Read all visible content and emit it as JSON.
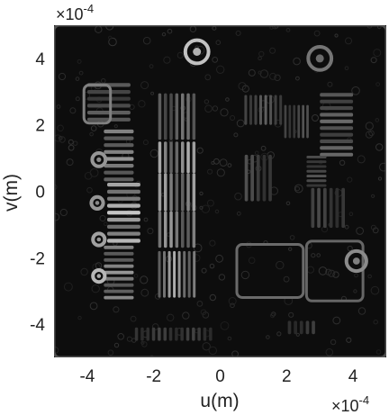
{
  "chart_data": {
    "type": "heatmap",
    "title": "",
    "xlabel": "u(m)",
    "ylabel": "v(m)",
    "xlim": [
      -5,
      5
    ],
    "ylim": [
      -5,
      5
    ],
    "x_ticks": [
      -4,
      -2,
      0,
      2,
      4
    ],
    "y_ticks": [
      4,
      2,
      0,
      -2,
      -4
    ],
    "x_tick_labels": [
      "-4",
      "-2",
      "0",
      "2",
      "4"
    ],
    "y_tick_labels": [
      "4",
      "2",
      "0",
      "-2",
      "-4"
    ],
    "x_scale_base": "×10",
    "x_scale_power": "-4",
    "y_scale_base": "×10",
    "y_scale_power": "-4",
    "colormap": "gray",
    "background_color": "#0d0d0d",
    "grid": false,
    "legend": "none",
    "bar_groups": [
      {
        "x0": -4.0,
        "x1": -2.7,
        "y0": 2.05,
        "y1": 3.3,
        "n": 6,
        "orient": "h",
        "level": 0.35
      },
      {
        "x0": -3.5,
        "x1": -2.6,
        "y0": 0.25,
        "y1": 1.9,
        "n": 8,
        "orient": "h",
        "level": 0.6
      },
      {
        "x0": -3.4,
        "x1": -2.4,
        "y0": -1.6,
        "y1": 0.3,
        "n": 9,
        "orient": "h",
        "level": 0.82
      },
      {
        "x0": -3.5,
        "x1": -2.6,
        "y0": -3.3,
        "y1": -1.6,
        "n": 9,
        "orient": "h",
        "level": 0.6
      },
      {
        "x0": -1.9,
        "x1": -0.7,
        "y0": 1.55,
        "y1": 2.95,
        "n": 7,
        "orient": "v",
        "level": 0.45
      },
      {
        "x0": -1.9,
        "x1": -0.7,
        "y0": 0.55,
        "y1": 1.5,
        "n": 7,
        "orient": "v",
        "level": 0.7
      },
      {
        "x0": -1.9,
        "x1": -0.7,
        "y0": -0.6,
        "y1": 0.55,
        "n": 7,
        "orient": "v",
        "level": 0.65
      },
      {
        "x0": -1.9,
        "x1": -0.7,
        "y0": -1.7,
        "y1": -0.6,
        "n": 7,
        "orient": "v",
        "level": 0.62
      },
      {
        "x0": -1.9,
        "x1": -0.7,
        "y0": -3.2,
        "y1": -1.8,
        "n": 8,
        "orient": "v",
        "level": 0.7
      },
      {
        "x0": 0.7,
        "x1": 1.9,
        "y0": 2.0,
        "y1": 2.9,
        "n": 8,
        "orient": "v",
        "level": 0.35
      },
      {
        "x0": 1.9,
        "x1": 2.7,
        "y0": 1.6,
        "y1": 2.6,
        "n": 6,
        "orient": "v",
        "level": 0.3
      },
      {
        "x0": 3.0,
        "x1": 4.0,
        "y0": 1.0,
        "y1": 3.0,
        "n": 10,
        "orient": "h",
        "level": 0.4
      },
      {
        "x0": 0.7,
        "x1": 1.6,
        "y0": -0.3,
        "y1": 1.1,
        "n": 5,
        "orient": "v",
        "level": 0.28
      },
      {
        "x0": 2.6,
        "x1": 3.2,
        "y0": 0.1,
        "y1": 1.1,
        "n": 7,
        "orient": "h",
        "level": 0.3
      },
      {
        "x0": 2.7,
        "x1": 3.8,
        "y0": -1.1,
        "y1": 0.1,
        "n": 6,
        "orient": "v",
        "level": 0.25
      },
      {
        "x0": 2.0,
        "x1": 2.9,
        "y0": -4.3,
        "y1": -3.9,
        "n": 5,
        "orient": "v",
        "level": 0.2
      },
      {
        "x0": -2.6,
        "x1": -0.2,
        "y0": -4.5,
        "y1": -4.1,
        "n": 14,
        "orient": "v",
        "level": 0.22
      }
    ],
    "ring_features": [
      {
        "x": -3.65,
        "y": 0.95,
        "r": 0.2,
        "level": 0.6
      },
      {
        "x": -3.7,
        "y": -0.35,
        "r": 0.18,
        "level": 0.6
      },
      {
        "x": -3.65,
        "y": -1.45,
        "r": 0.18,
        "level": 0.65
      },
      {
        "x": -3.65,
        "y": -2.55,
        "r": 0.18,
        "level": 0.75
      },
      {
        "x": -0.7,
        "y": 4.2,
        "r": 0.35,
        "level": 0.8
      },
      {
        "x": 3.0,
        "y": 4.0,
        "r": 0.35,
        "level": 0.45
      },
      {
        "x": 4.1,
        "y": -2.1,
        "r": 0.3,
        "level": 0.55
      }
    ],
    "outline_features": [
      {
        "x0": -4.1,
        "x1": -3.3,
        "y0": 2.05,
        "y1": 3.2,
        "level": 0.5
      },
      {
        "x0": 0.5,
        "x1": 2.5,
        "y0": -3.2,
        "y1": -1.6,
        "level": 0.4
      },
      {
        "x0": 2.6,
        "x1": 4.3,
        "y0": -3.3,
        "y1": -1.5,
        "level": 0.38
      },
      {
        "x0": -5.0,
        "x1": 5.0,
        "y0": -5.0,
        "y1": 5.0,
        "level": 0.28
      }
    ]
  }
}
